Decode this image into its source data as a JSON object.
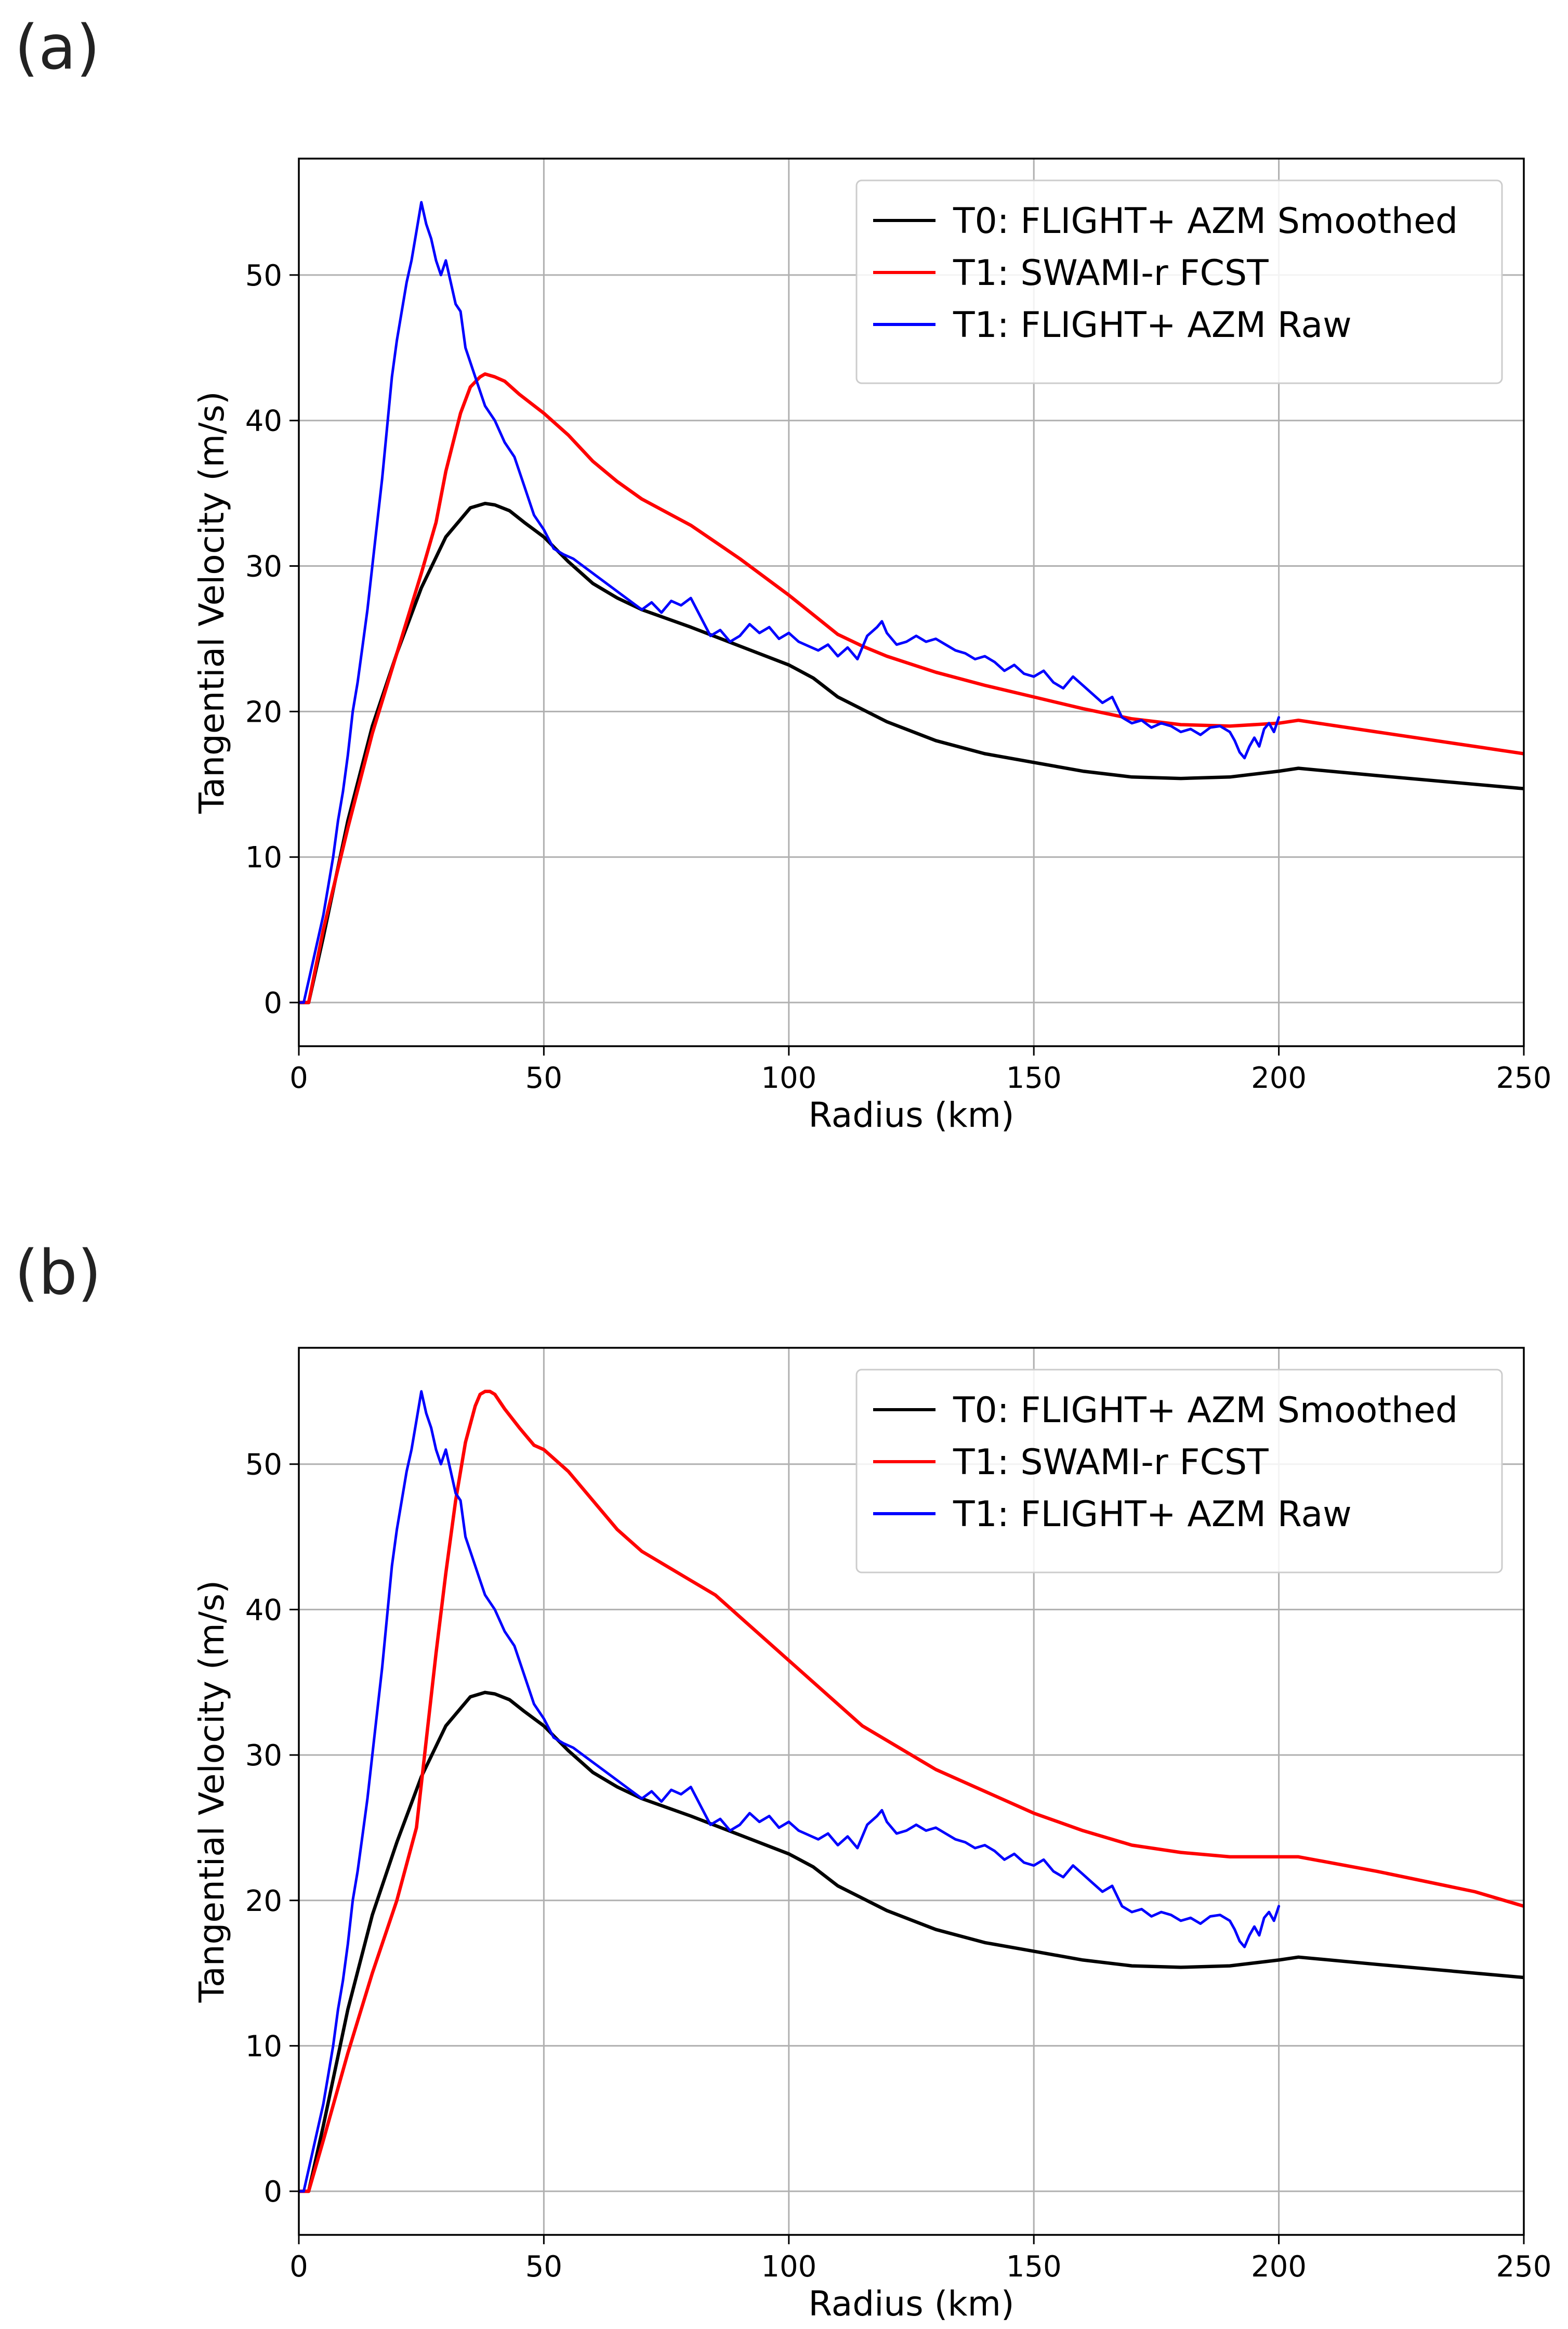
{
  "chart_data": [
    {
      "panel_label": "(a)",
      "type": "line",
      "xlabel": "Radius (km)",
      "ylabel": "Tangential Velocity (m/s)",
      "xlim": [
        0,
        250
      ],
      "ylim": [
        -3,
        58
      ],
      "xticks": [
        0,
        50,
        100,
        150,
        200,
        250
      ],
      "yticks": [
        0,
        10,
        20,
        30,
        40,
        50
      ],
      "grid": true,
      "legend_position": "upper right",
      "series": [
        {
          "name": "T0: FLIGHT+ AZM Smoothed",
          "color": "#000000",
          "x": [
            0,
            2,
            5,
            10,
            15,
            20,
            25,
            30,
            35,
            38,
            40,
            43,
            46,
            50,
            55,
            60,
            65,
            70,
            80,
            90,
            100,
            105,
            110,
            120,
            130,
            140,
            150,
            160,
            170,
            180,
            190,
            200,
            204,
            220,
            240,
            250
          ],
          "y": [
            0,
            0,
            4.5,
            12.5,
            19,
            24,
            28.5,
            32,
            34,
            34.3,
            34.2,
            33.8,
            33,
            32,
            30.3,
            28.8,
            27.8,
            27,
            25.8,
            24.5,
            23.2,
            22.3,
            21,
            19.3,
            18,
            17.1,
            16.5,
            15.9,
            15.5,
            15.4,
            15.5,
            15.9,
            16.1,
            15.6,
            15.0,
            14.7
          ]
        },
        {
          "name": "T1: SWAMI-r FCST",
          "color": "#ff0000",
          "x": [
            0,
            2,
            5,
            10,
            15,
            20,
            25,
            28,
            30,
            33,
            35,
            37,
            38,
            39,
            40,
            42,
            45,
            50,
            55,
            60,
            65,
            70,
            80,
            90,
            100,
            110,
            115,
            120,
            130,
            140,
            150,
            160,
            170,
            180,
            190,
            200,
            204,
            220,
            240,
            250
          ],
          "y": [
            0,
            0,
            5,
            12,
            18.5,
            24,
            29.5,
            33,
            36.5,
            40.5,
            42.3,
            43,
            43.2,
            43.1,
            43,
            42.7,
            41.8,
            40.5,
            39,
            37.2,
            35.8,
            34.6,
            32.8,
            30.5,
            28,
            25.3,
            24.5,
            23.8,
            22.7,
            21.8,
            21,
            20.2,
            19.5,
            19.1,
            19,
            19.2,
            19.4,
            18.6,
            17.6,
            17.1
          ]
        },
        {
          "name": "T1: FLIGHT+ AZM Raw",
          "color": "#0000ff",
          "x": [
            0,
            1,
            2,
            3,
            4,
            5,
            6,
            7,
            8,
            9,
            10,
            11,
            12,
            13,
            14,
            15,
            16,
            17,
            18,
            19,
            20,
            21,
            22,
            23,
            24,
            25,
            26,
            27,
            28,
            29,
            30,
            31,
            32,
            33,
            34,
            35,
            36,
            37,
            38,
            39,
            40,
            42,
            44,
            46,
            48,
            50,
            52,
            54,
            56,
            58,
            60,
            62,
            64,
            66,
            68,
            70,
            72,
            74,
            76,
            78,
            80,
            82,
            84,
            86,
            88,
            90,
            92,
            94,
            96,
            98,
            100,
            102,
            104,
            106,
            108,
            110,
            112,
            114,
            116,
            118,
            119,
            120,
            122,
            124,
            126,
            128,
            130,
            132,
            134,
            136,
            138,
            140,
            142,
            144,
            146,
            148,
            150,
            152,
            154,
            156,
            158,
            160,
            162,
            164,
            166,
            168,
            170,
            172,
            174,
            176,
            178,
            180,
            182,
            184,
            186,
            188,
            190,
            191,
            192,
            193,
            194,
            195,
            196,
            197,
            198,
            199,
            200
          ],
          "y": [
            0,
            0,
            1.5,
            3,
            4.5,
            6,
            8,
            10,
            12.5,
            14.5,
            17,
            20,
            22,
            24.5,
            27,
            30,
            33,
            36,
            39.5,
            43,
            45.5,
            47.5,
            49.5,
            51,
            53,
            55,
            53.5,
            52.5,
            51,
            50,
            51,
            49.5,
            48,
            47.5,
            45,
            44,
            43,
            42,
            41,
            40.5,
            40,
            38.5,
            37.5,
            35.5,
            33.5,
            32.5,
            31.2,
            30.8,
            30.5,
            30,
            29.5,
            29,
            28.5,
            28,
            27.5,
            27,
            27.5,
            26.8,
            27.6,
            27.3,
            27.8,
            26.5,
            25.2,
            25.6,
            24.8,
            25.2,
            26.0,
            25.4,
            25.8,
            25.0,
            25.4,
            24.8,
            24.5,
            24.2,
            24.6,
            23.8,
            24.4,
            23.6,
            25.2,
            25.8,
            26.2,
            25.4,
            24.6,
            24.8,
            25.2,
            24.8,
            25.0,
            24.6,
            24.2,
            24.0,
            23.6,
            23.8,
            23.4,
            22.8,
            23.2,
            22.6,
            22.4,
            22.8,
            22.0,
            21.6,
            22.4,
            21.8,
            21.2,
            20.6,
            21.0,
            19.6,
            19.2,
            19.4,
            18.9,
            19.2,
            19.0,
            18.6,
            18.8,
            18.4,
            18.9,
            19.0,
            18.6,
            18.0,
            17.2,
            16.8,
            17.6,
            18.2,
            17.6,
            18.8,
            19.2,
            18.6,
            19.6
          ]
        }
      ]
    },
    {
      "panel_label": "(b)",
      "type": "line",
      "xlabel": "Radius (km)",
      "ylabel": "Tangential Velocity (m/s)",
      "xlim": [
        0,
        250
      ],
      "ylim": [
        -3,
        58
      ],
      "xticks": [
        0,
        50,
        100,
        150,
        200,
        250
      ],
      "yticks": [
        0,
        10,
        20,
        30,
        40,
        50
      ],
      "grid": true,
      "legend_position": "upper right",
      "series": [
        {
          "name": "T0: FLIGHT+ AZM Smoothed",
          "color": "#000000",
          "x": [
            0,
            2,
            5,
            10,
            15,
            20,
            25,
            30,
            35,
            38,
            40,
            43,
            46,
            50,
            55,
            60,
            65,
            70,
            80,
            90,
            100,
            105,
            110,
            120,
            130,
            140,
            150,
            160,
            170,
            180,
            190,
            200,
            204,
            220,
            240,
            250
          ],
          "y": [
            0,
            0,
            4.5,
            12.5,
            19,
            24,
            28.5,
            32,
            34,
            34.3,
            34.2,
            33.8,
            33,
            32,
            30.3,
            28.8,
            27.8,
            27,
            25.8,
            24.5,
            23.2,
            22.3,
            21,
            19.3,
            18,
            17.1,
            16.5,
            15.9,
            15.5,
            15.4,
            15.5,
            15.9,
            16.1,
            15.6,
            15.0,
            14.7
          ]
        },
        {
          "name": "T1: SWAMI-r FCST",
          "color": "#ff0000",
          "x": [
            0,
            2,
            5,
            10,
            15,
            20,
            24,
            26,
            28,
            30,
            32,
            34,
            36,
            37,
            38,
            39,
            40,
            42,
            45,
            48,
            50,
            55,
            60,
            65,
            70,
            80,
            85,
            90,
            100,
            110,
            115,
            120,
            130,
            140,
            150,
            160,
            170,
            180,
            190,
            200,
            204,
            220,
            240,
            250
          ],
          "y": [
            0,
            0,
            3.5,
            9.5,
            15,
            20,
            25,
            31,
            37,
            42.5,
            47.5,
            51.5,
            54,
            54.8,
            55,
            55,
            54.8,
            53.8,
            52.5,
            51.3,
            51,
            49.5,
            47.5,
            45.5,
            44,
            42,
            41,
            39.5,
            36.5,
            33.5,
            32,
            31,
            29,
            27.5,
            26,
            24.8,
            23.8,
            23.3,
            23,
            23,
            23,
            22,
            20.6,
            19.6
          ]
        },
        {
          "name": "T1: FLIGHT+ AZM Raw",
          "color": "#0000ff",
          "x": [
            0,
            1,
            2,
            3,
            4,
            5,
            6,
            7,
            8,
            9,
            10,
            11,
            12,
            13,
            14,
            15,
            16,
            17,
            18,
            19,
            20,
            21,
            22,
            23,
            24,
            25,
            26,
            27,
            28,
            29,
            30,
            31,
            32,
            33,
            34,
            35,
            36,
            37,
            38,
            39,
            40,
            42,
            44,
            46,
            48,
            50,
            52,
            54,
            56,
            58,
            60,
            62,
            64,
            66,
            68,
            70,
            72,
            74,
            76,
            78,
            80,
            82,
            84,
            86,
            88,
            90,
            92,
            94,
            96,
            98,
            100,
            102,
            104,
            106,
            108,
            110,
            112,
            114,
            116,
            118,
            119,
            120,
            122,
            124,
            126,
            128,
            130,
            132,
            134,
            136,
            138,
            140,
            142,
            144,
            146,
            148,
            150,
            152,
            154,
            156,
            158,
            160,
            162,
            164,
            166,
            168,
            170,
            172,
            174,
            176,
            178,
            180,
            182,
            184,
            186,
            188,
            190,
            191,
            192,
            193,
            194,
            195,
            196,
            197,
            198,
            199,
            200
          ],
          "y": [
            0,
            0,
            1.5,
            3,
            4.5,
            6,
            8,
            10,
            12.5,
            14.5,
            17,
            20,
            22,
            24.5,
            27,
            30,
            33,
            36,
            39.5,
            43,
            45.5,
            47.5,
            49.5,
            51,
            53,
            55,
            53.5,
            52.5,
            51,
            50,
            51,
            49.5,
            48,
            47.5,
            45,
            44,
            43,
            42,
            41,
            40.5,
            40,
            38.5,
            37.5,
            35.5,
            33.5,
            32.5,
            31.2,
            30.8,
            30.5,
            30,
            29.5,
            29,
            28.5,
            28,
            27.5,
            27,
            27.5,
            26.8,
            27.6,
            27.3,
            27.8,
            26.5,
            25.2,
            25.6,
            24.8,
            25.2,
            26.0,
            25.4,
            25.8,
            25.0,
            25.4,
            24.8,
            24.5,
            24.2,
            24.6,
            23.8,
            24.4,
            23.6,
            25.2,
            25.8,
            26.2,
            25.4,
            24.6,
            24.8,
            25.2,
            24.8,
            25.0,
            24.6,
            24.2,
            24.0,
            23.6,
            23.8,
            23.4,
            22.8,
            23.2,
            22.6,
            22.4,
            22.8,
            22.0,
            21.6,
            22.4,
            21.8,
            21.2,
            20.6,
            21.0,
            19.6,
            19.2,
            19.4,
            18.9,
            19.2,
            19.0,
            18.6,
            18.8,
            18.4,
            18.9,
            19.0,
            18.6,
            18.0,
            17.2,
            16.8,
            17.6,
            18.2,
            17.6,
            18.8,
            19.2,
            18.6,
            19.6
          ]
        }
      ]
    }
  ]
}
